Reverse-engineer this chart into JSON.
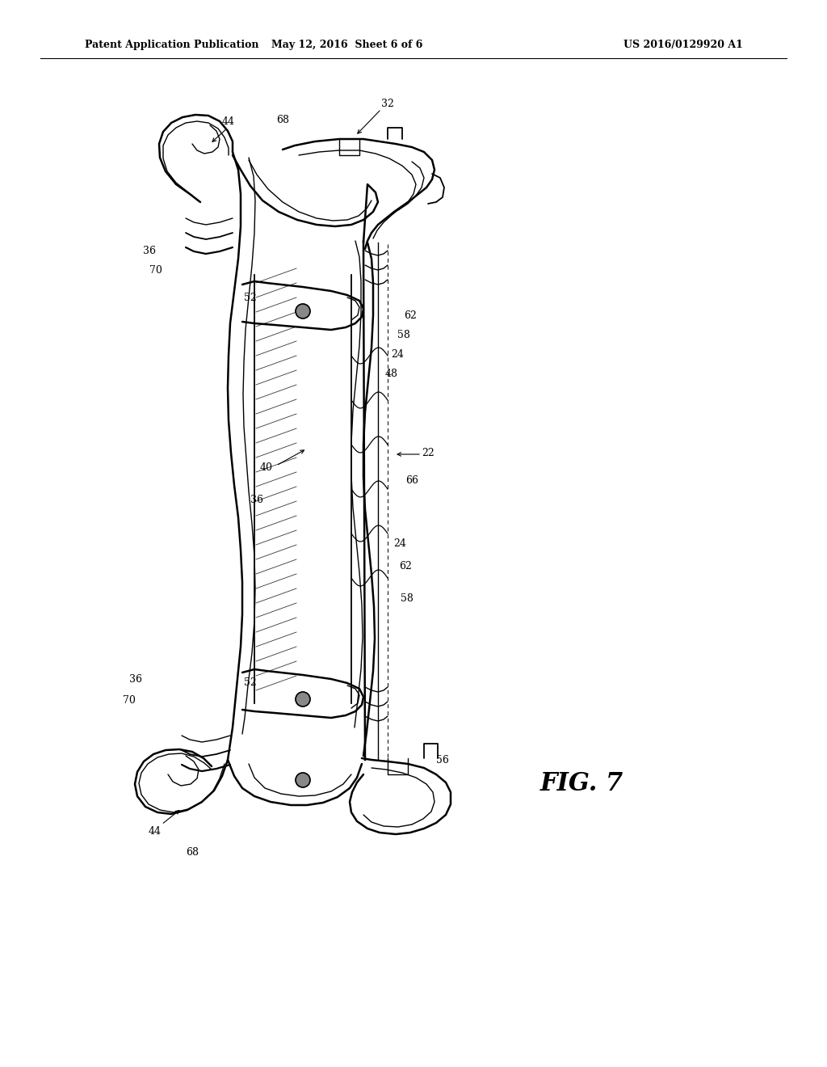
{
  "background_color": "#ffffff",
  "header_left": "Patent Application Publication",
  "header_mid": "May 12, 2016  Sheet 6 of 6",
  "header_right": "US 2016/0129920 A1",
  "fig_label": "FIG. 7",
  "fontsize_ref": 9,
  "fontsize_header": 9,
  "fontsize_fig": 22
}
